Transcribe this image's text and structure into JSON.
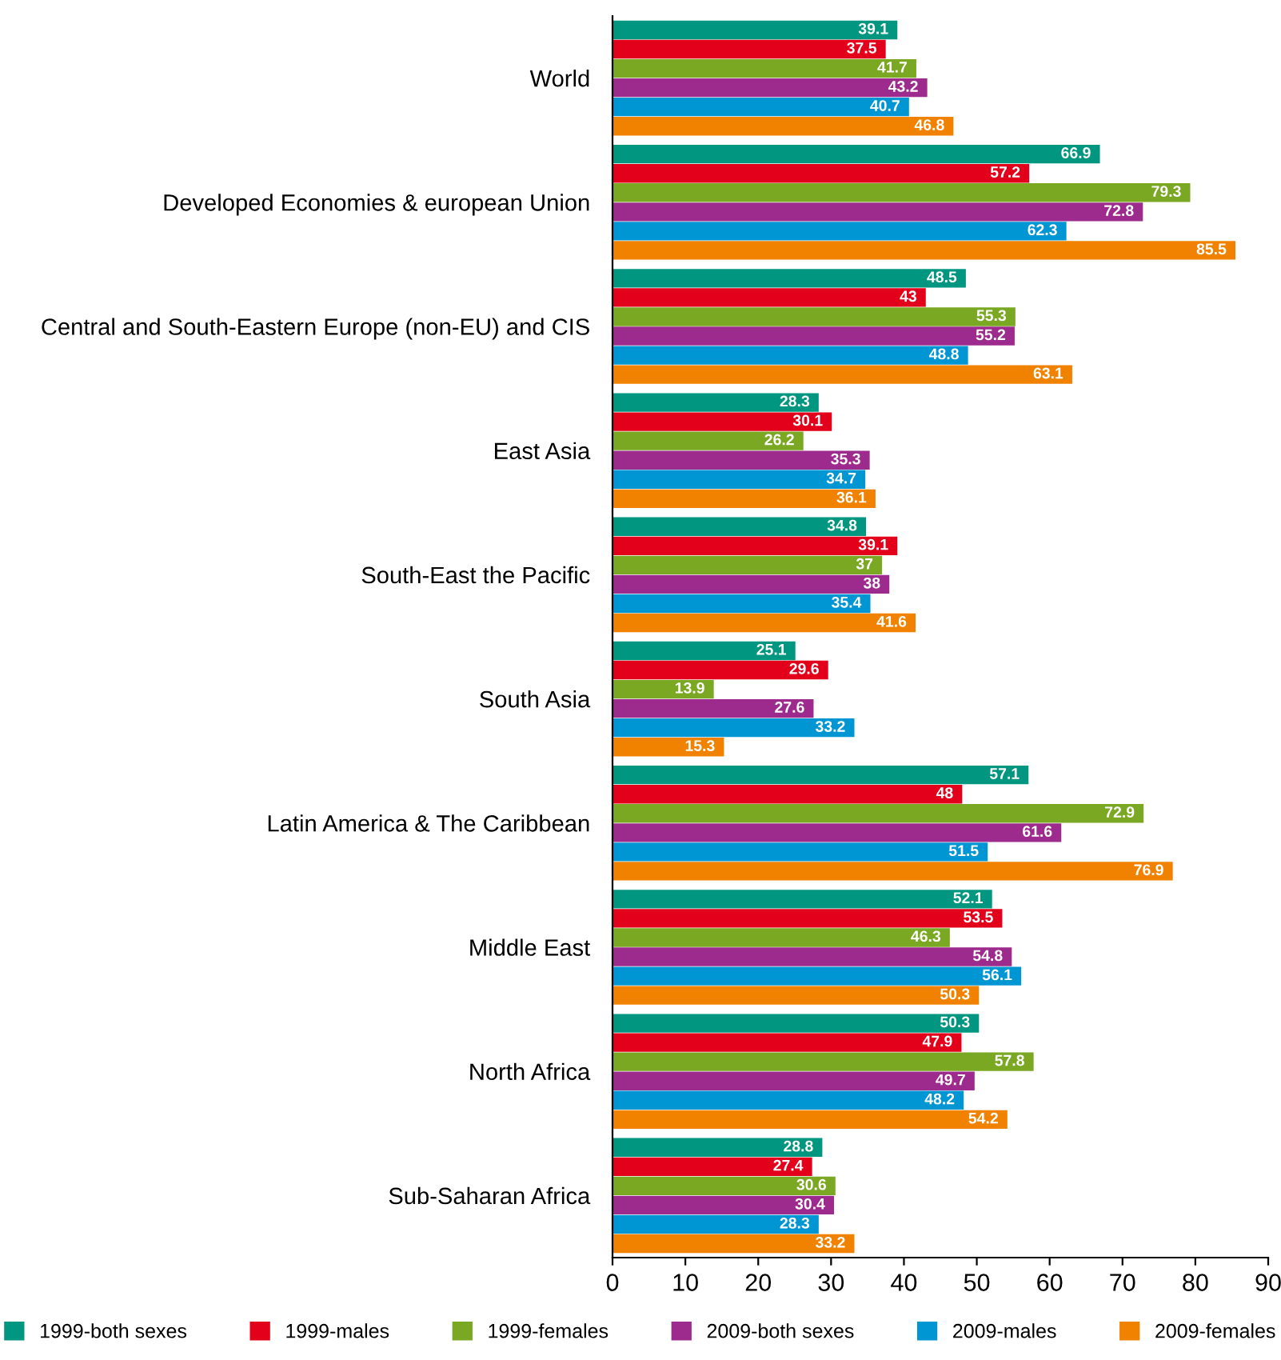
{
  "chart_data": {
    "type": "bar",
    "orientation": "horizontal",
    "categories": [
      "World",
      "Developed Economies & european Union",
      "Central and South-Eastern Europe (non-EU) and CIS",
      "East Asia",
      "South-East the Pacific",
      "South Asia",
      "Latin America & The Caribbean",
      "Middle East",
      "North Africa",
      "Sub-Saharan Africa"
    ],
    "series": [
      {
        "name": "1999-both sexes",
        "color": "#00967f",
        "values": [
          39.1,
          66.9,
          48.5,
          28.3,
          34.8,
          25.1,
          57.1,
          52.1,
          50.3,
          28.8
        ]
      },
      {
        "name": "1999-males",
        "color": "#e2001a",
        "values": [
          37.5,
          57.2,
          43,
          30.1,
          39.1,
          29.6,
          48,
          53.5,
          47.9,
          27.4
        ]
      },
      {
        "name": "1999-females",
        "color": "#7aa823",
        "values": [
          41.7,
          79.3,
          55.3,
          26.2,
          37,
          13.9,
          72.9,
          46.3,
          57.8,
          30.6
        ]
      },
      {
        "name": "2009-both sexes",
        "color": "#9c2b8d",
        "values": [
          43.2,
          72.8,
          55.2,
          35.3,
          38,
          27.6,
          61.6,
          54.8,
          49.7,
          30.4
        ]
      },
      {
        "name": "2009-males",
        "color": "#0095d3",
        "values": [
          40.7,
          62.3,
          48.8,
          34.7,
          35.4,
          33.2,
          51.5,
          56.1,
          48.2,
          28.3
        ]
      },
      {
        "name": "2009-females",
        "color": "#f08200",
        "values": [
          46.8,
          85.5,
          63.1,
          36.1,
          41.6,
          15.3,
          76.9,
          50.3,
          54.2,
          33.2
        ]
      }
    ],
    "xlim": [
      0,
      90
    ],
    "xticks": [
      0,
      10,
      20,
      30,
      40,
      50,
      60,
      70,
      80,
      90
    ],
    "data_labels": true,
    "legend": "bottom",
    "grid": false
  }
}
